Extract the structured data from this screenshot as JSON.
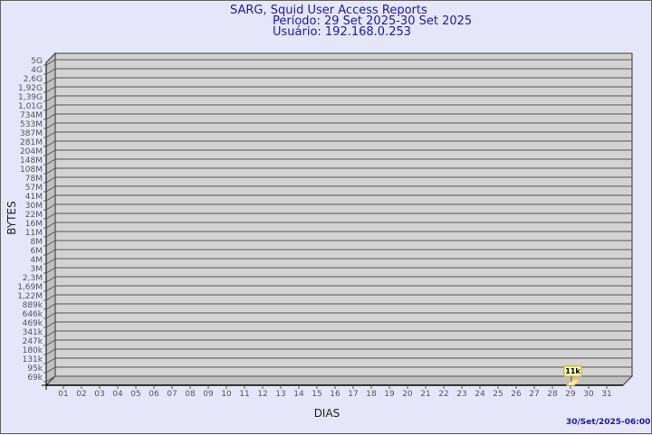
{
  "header": {
    "title": "SARG, Squid User Access Reports",
    "period": "Período: 29 Set 2025-30 Set 2025",
    "user": "Usuário: 192.168.0.253"
  },
  "timestamp": "30/Set/2025-06:00",
  "colors": {
    "background": "#e6e6fa",
    "wall": "#d3d3d3",
    "side_wall": "#c0c0c0",
    "title": "#1a1aa6",
    "bar": "#ffe9a0",
    "label_box": "#ffffc0"
  },
  "chart_data": {
    "type": "bar",
    "xlabel": "DIAS",
    "ylabel": "BYTES",
    "yscale": "log",
    "grid": true,
    "categories": [
      "01",
      "02",
      "03",
      "04",
      "05",
      "06",
      "07",
      "08",
      "09",
      "10",
      "11",
      "12",
      "13",
      "14",
      "15",
      "16",
      "17",
      "18",
      "19",
      "20",
      "21",
      "22",
      "23",
      "24",
      "25",
      "26",
      "27",
      "28",
      "29",
      "30",
      "31"
    ],
    "values": [
      0,
      0,
      0,
      0,
      0,
      0,
      0,
      0,
      0,
      0,
      0,
      0,
      0,
      0,
      0,
      0,
      0,
      0,
      0,
      0,
      0,
      0,
      0,
      0,
      0,
      0,
      0,
      0,
      11000,
      0,
      0
    ],
    "data_labels": {
      "29": "11k"
    },
    "yticks": [
      "5G",
      "4G",
      "2,6G",
      "1,92G",
      "1,39G",
      "1,01G",
      "734M",
      "533M",
      "387M",
      "281M",
      "204M",
      "148M",
      "108M",
      "78M",
      "57M",
      "41M",
      "30M",
      "22M",
      "16M",
      "11M",
      "8M",
      "6M",
      "4M",
      "3M",
      "2,3M",
      "1,69M",
      "1,22M",
      "889k",
      "646k",
      "469k",
      "341k",
      "247k",
      "180k",
      "131k",
      "95k",
      "69k"
    ]
  }
}
